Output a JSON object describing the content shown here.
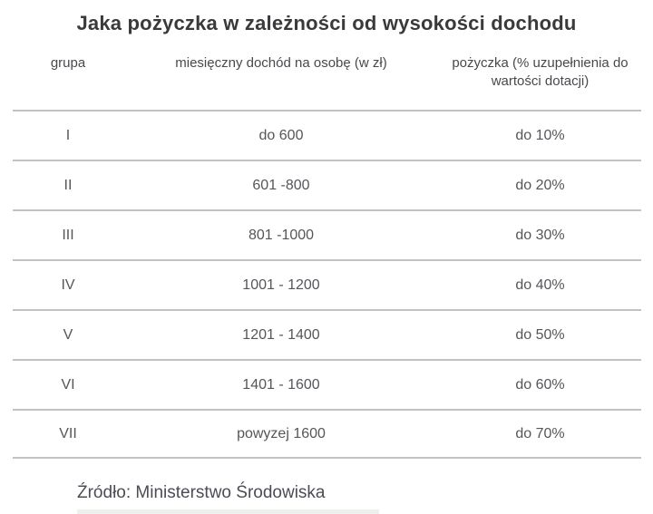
{
  "title": "Jaka pożyczka w zależności od wysokości dochodu",
  "table": {
    "headers": {
      "group": "grupa",
      "income": "miesięczny dochód na osobę (w zł)",
      "loan": "pożyczka (% uzupełnienia do wartości dotacji)"
    },
    "rows": [
      {
        "group": "I",
        "income": "do 600",
        "loan": "do 10%"
      },
      {
        "group": "II",
        "income": "601 -800",
        "loan": "do 20%"
      },
      {
        "group": "III",
        "income": "801 -1000",
        "loan": "do 30%"
      },
      {
        "group": "IV",
        "income": "1001 - 1200",
        "loan": "do 40%"
      },
      {
        "group": "V",
        "income": "1201 - 1400",
        "loan": "do 50%"
      },
      {
        "group": "VI",
        "income": "1401 - 1600",
        "loan": "do 60%"
      },
      {
        "group": "VII",
        "income": "powyzej 1600",
        "loan": "do 70%"
      }
    ]
  },
  "source": "Źródło: Ministerstwo Środowiska",
  "colors": {
    "title_text": "#3a3a3c",
    "header_text": "#48494d",
    "cell_text": "#55565a",
    "divider": "#c2c2c2",
    "background": "#ffffff"
  },
  "chart_data": {
    "type": "table",
    "title": "Jaka pożyczka w zależności od wysokości dochodu",
    "columns": [
      "grupa",
      "miesięczny dochód na osobę (w zł)",
      "pożyczka (% uzupełnienia do wartości dotacji)"
    ],
    "rows": [
      [
        "I",
        "do 600",
        "do 10%"
      ],
      [
        "II",
        "601 -800",
        "do 20%"
      ],
      [
        "III",
        "801 -1000",
        "do 30%"
      ],
      [
        "IV",
        "1001 - 1200",
        "do 40%"
      ],
      [
        "V",
        "1201 - 1400",
        "do 50%"
      ],
      [
        "VI",
        "1401 - 1600",
        "do 60%"
      ],
      [
        "VII",
        "powyzej 1600",
        "do 70%"
      ]
    ],
    "source": "Źródło: Ministerstwo Środowiska",
    "layout": {
      "grid": "horizontal-dividers-only",
      "header_border": false
    }
  }
}
